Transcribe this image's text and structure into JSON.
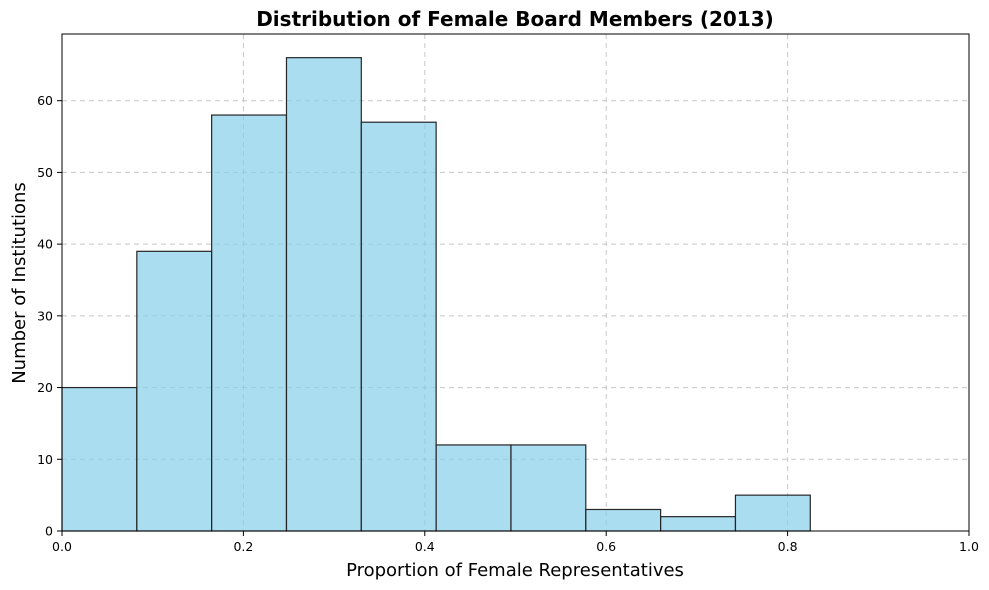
{
  "chart_data": {
    "type": "bar",
    "title": "Distribution of Female Board Members (2013)",
    "xlabel": "Proportion of Female Representatives",
    "ylabel": "Number of Institutions",
    "bin_edges": [
      0.0,
      0.0825,
      0.165,
      0.2475,
      0.33,
      0.4125,
      0.495,
      0.5775,
      0.66,
      0.7425,
      0.825
    ],
    "values": [
      20,
      39,
      58,
      66,
      57,
      12,
      12,
      3,
      2,
      5
    ],
    "xlim": [
      0,
      1
    ],
    "ylim": [
      0,
      69.3
    ],
    "xticks": [
      0,
      0.2,
      0.4,
      0.6,
      0.8,
      1.0
    ],
    "xtick_labels": [
      "0.0",
      "0.2",
      "0.4",
      "0.6",
      "0.8",
      "1.0"
    ],
    "yticks": [
      0,
      10,
      20,
      30,
      40,
      50,
      60
    ],
    "ytick_labels": [
      "0",
      "10",
      "20",
      "30",
      "40",
      "50",
      "60"
    ],
    "grid": true,
    "bar_color": "#87CEEB",
    "edge_color": "#000000"
  }
}
